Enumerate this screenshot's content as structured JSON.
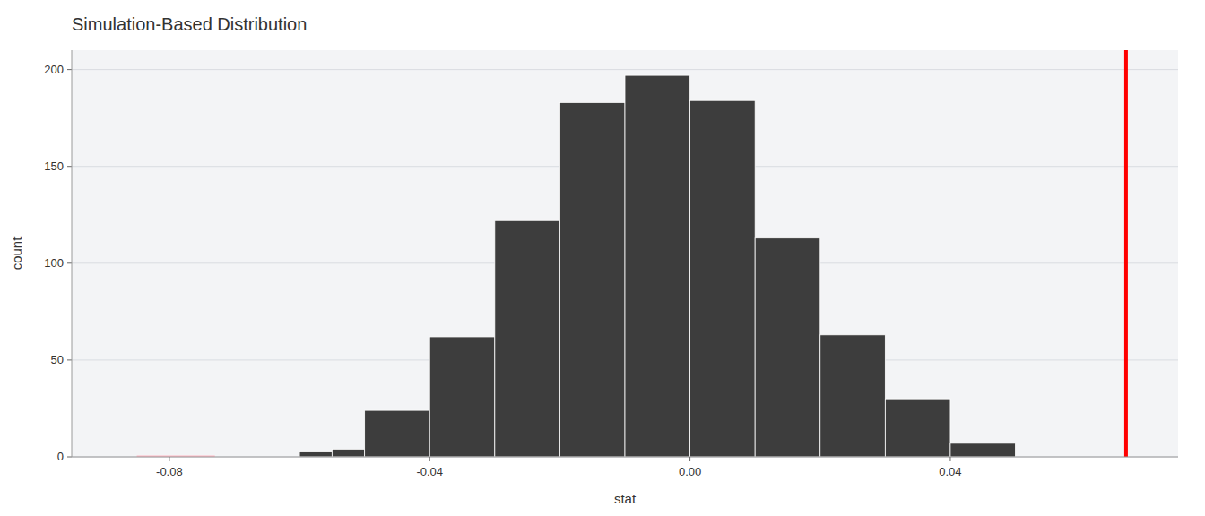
{
  "chart_data": {
    "type": "histogram",
    "title": "Simulation-Based Distribution",
    "x_label": "stat",
    "y_label": "count",
    "bins": [
      -0.06,
      -0.055,
      -0.05,
      -0.04,
      -0.03,
      -0.02,
      -0.01,
      0.0,
      0.01,
      0.02,
      0.03,
      0.04,
      0.05,
      0.06
    ],
    "values": [
      3,
      4,
      24,
      62,
      122,
      183,
      197,
      184,
      113,
      63,
      30,
      7,
      0
    ],
    "color": "#3d3d3d",
    "xlim": [
      -0.095,
      0.075
    ],
    "xticks": [
      -0.08,
      -0.04,
      {
        "value": 0,
        "label": "0.00"
      },
      0.04
    ],
    "ylim": [
      0,
      210
    ],
    "yticks": [
      0,
      50,
      100,
      150,
      200
    ],
    "grid": true,
    "reference_lines": [
      {
        "x": 0.067,
        "color": "#ff0000"
      }
    ],
    "segments": [
      {
        "x": [
          -0.085,
          -0.073
        ],
        "y": 0,
        "color": "#ffb6c1"
      }
    ]
  }
}
